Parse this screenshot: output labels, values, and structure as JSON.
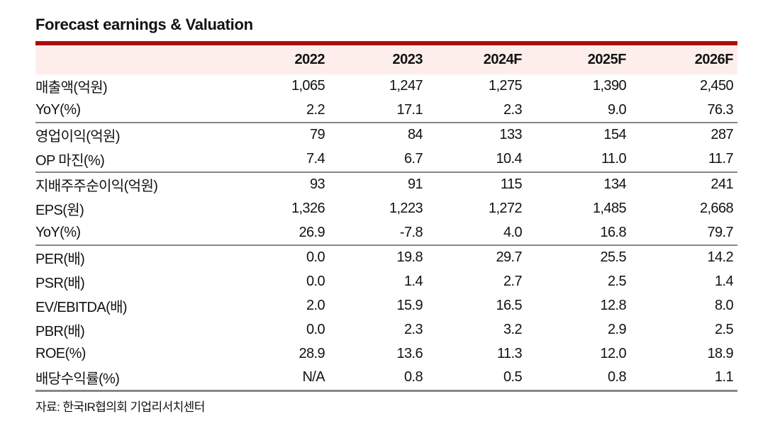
{
  "title": "Forecast earnings & Valuation",
  "colors": {
    "accent_red": "#b00b0b",
    "header_bg": "#fdeeec",
    "separator_gray": "#868686"
  },
  "table": {
    "columns": [
      "2022",
      "2023",
      "2024F",
      "2025F",
      "2026F"
    ],
    "groups": [
      {
        "rows": [
          {
            "label": "매출액(억원)",
            "values": [
              "1,065",
              "1,247",
              "1,275",
              "1,390",
              "2,450"
            ]
          },
          {
            "label": "YoY(%)",
            "values": [
              "2.2",
              "17.1",
              "2.3",
              "9.0",
              "76.3"
            ]
          }
        ]
      },
      {
        "rows": [
          {
            "label": "영업이익(억원)",
            "values": [
              "79",
              "84",
              "133",
              "154",
              "287"
            ]
          },
          {
            "label": "OP 마진(%)",
            "values": [
              "7.4",
              "6.7",
              "10.4",
              "11.0",
              "11.7"
            ]
          }
        ]
      },
      {
        "rows": [
          {
            "label": "지배주주순이익(억원)",
            "values": [
              "93",
              "91",
              "115",
              "134",
              "241"
            ]
          },
          {
            "label": "EPS(원)",
            "values": [
              "1,326",
              "1,223",
              "1,272",
              "1,485",
              "2,668"
            ]
          },
          {
            "label": "YoY(%)",
            "values": [
              "26.9",
              "-7.8",
              "4.0",
              "16.8",
              "79.7"
            ]
          }
        ]
      },
      {
        "rows": [
          {
            "label": "PER(배)",
            "values": [
              "0.0",
              "19.8",
              "29.7",
              "25.5",
              "14.2"
            ]
          },
          {
            "label": "PSR(배)",
            "values": [
              "0.0",
              "1.4",
              "2.7",
              "2.5",
              "1.4"
            ]
          },
          {
            "label": "EV/EBITDA(배)",
            "values": [
              "2.0",
              "15.9",
              "16.5",
              "12.8",
              "8.0"
            ]
          },
          {
            "label": "PBR(배)",
            "values": [
              "0.0",
              "2.3",
              "3.2",
              "2.9",
              "2.5"
            ]
          },
          {
            "label": "ROE(%)",
            "values": [
              "28.9",
              "13.6",
              "11.3",
              "12.0",
              "18.9"
            ]
          },
          {
            "label": "배당수익률(%)",
            "values": [
              "N/A",
              "0.8",
              "0.5",
              "0.8",
              "1.1"
            ]
          }
        ]
      }
    ]
  },
  "footer": {
    "source": "자료: 한국IR협의회 기업리서치센터"
  }
}
